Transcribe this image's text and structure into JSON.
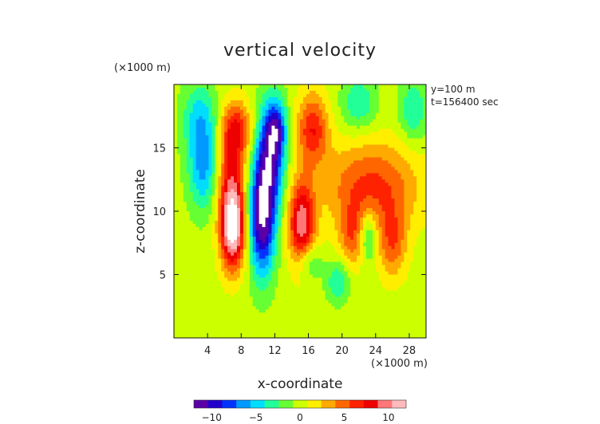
{
  "chart_data": {
    "type": "heatmap",
    "title": "vertical velocity",
    "xlabel": "x-coordinate",
    "ylabel": "z-coordinate",
    "x_unit": "(×1000 m)",
    "y_unit": "(×1000 m)",
    "annotations": [
      "y=100 m",
      "t=156400 sec"
    ],
    "xlim": [
      0,
      30
    ],
    "ylim": [
      0,
      20
    ],
    "x_ticks": [
      4,
      8,
      12,
      16,
      20,
      24,
      28
    ],
    "y_ticks": [
      5,
      10,
      15
    ],
    "colorbar": {
      "range": [
        -12,
        12
      ],
      "ticks": [
        -10,
        -5,
        0,
        5,
        10
      ],
      "colors": [
        "#5a00a8",
        "#2200cc",
        "#0033ff",
        "#0099ff",
        "#00ddff",
        "#22ff99",
        "#66ff33",
        "#ccff00",
        "#ffee00",
        "#ffaa00",
        "#ff6600",
        "#ff2200",
        "#ee0000",
        "#ff7777",
        "#ffbbbb"
      ]
    },
    "background_value": 0,
    "features": [
      {
        "kind": "updraft",
        "x": 7,
        "z": 8.5,
        "value": 12,
        "sx": 1.0,
        "sz": 2.2
      },
      {
        "kind": "updraft",
        "x": 6.8,
        "z": 12.5,
        "value": 7,
        "sx": 1.2,
        "sz": 3.0
      },
      {
        "kind": "updraft",
        "x": 7.5,
        "z": 16.5,
        "value": 6,
        "sx": 1.3,
        "sz": 1.5
      },
      {
        "kind": "downdraft",
        "x": 10.5,
        "z": 9.5,
        "value": -12,
        "sx": 1.1,
        "sz": 3.2
      },
      {
        "kind": "downdraft",
        "x": 11.5,
        "z": 14.5,
        "value": -9,
        "sx": 1.2,
        "sz": 3.0
      },
      {
        "kind": "downdraft",
        "x": 12.2,
        "z": 16.5,
        "value": -6,
        "sx": 0.8,
        "sz": 1.5
      },
      {
        "kind": "updraft",
        "x": 15.2,
        "z": 9.0,
        "value": 10,
        "sx": 1.1,
        "sz": 2.4
      },
      {
        "kind": "updraft",
        "x": 16.5,
        "z": 16.5,
        "value": 7,
        "sx": 1.3,
        "sz": 2.0
      },
      {
        "kind": "updraft",
        "x": 23.5,
        "z": 12.0,
        "value": 6,
        "sx": 4.0,
        "sz": 2.5
      },
      {
        "kind": "updraft",
        "x": 21.5,
        "z": 8.0,
        "value": 5,
        "sx": 1.3,
        "sz": 1.8
      },
      {
        "kind": "updraft",
        "x": 26.0,
        "z": 7.5,
        "value": 5,
        "sx": 1.2,
        "sz": 2.0
      },
      {
        "kind": "downdraft",
        "x": 23.0,
        "z": 8.0,
        "value": -6,
        "sx": 0.8,
        "sz": 1.5
      },
      {
        "kind": "downdraft",
        "x": 3.5,
        "z": 13.5,
        "value": -6,
        "sx": 1.3,
        "sz": 2.5
      },
      {
        "kind": "downdraft",
        "x": 3.0,
        "z": 17.5,
        "value": -4,
        "sx": 1.5,
        "sz": 2.0
      },
      {
        "kind": "downdraft",
        "x": 19.5,
        "z": 4.5,
        "value": -4,
        "sx": 1.0,
        "sz": 1.2
      },
      {
        "kind": "downdraft",
        "x": 16.0,
        "z": 6.0,
        "value": -4,
        "sx": 1.0,
        "sz": 1.0
      },
      {
        "kind": "downdraft",
        "x": 22.0,
        "z": 18.5,
        "value": -4,
        "sx": 1.5,
        "sz": 1.5
      },
      {
        "kind": "downdraft",
        "x": 28.5,
        "z": 18.0,
        "value": -4,
        "sx": 1.2,
        "sz": 1.8
      }
    ]
  }
}
